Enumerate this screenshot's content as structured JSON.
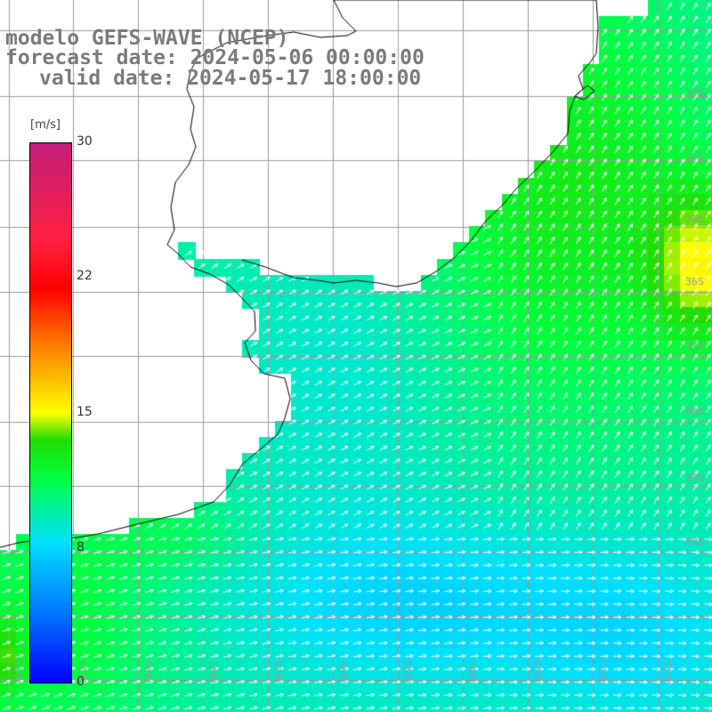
{
  "title": {
    "line1": "modelo GEFS-WAVE (NCEP)",
    "line2": "forecast date: 2024-05-06 00:00:00",
    "line3": "valid date: 2024-05-17 18:00:00"
  },
  "colorbar": {
    "unit": "[m/s]",
    "min": 0,
    "max": 30,
    "ticks": [
      {
        "label": "30",
        "value": 30
      },
      {
        "label": "22",
        "value": 22
      },
      {
        "label": "15",
        "value": 15
      },
      {
        "label": "8",
        "value": 8
      },
      {
        "label": "0",
        "value": 0
      }
    ]
  },
  "map": {
    "lon_labels": [
      "61W",
      "60W",
      "59W",
      "58W",
      "57W",
      "56W",
      "55W",
      "54W",
      "53W",
      "52W",
      "51W"
    ],
    "lat_labels": [
      "33S",
      "34S",
      "35S",
      "36S",
      "37S",
      "38S",
      "39S",
      "40S"
    ],
    "colors": {
      "grid": "#9a9a9a",
      "coast": "#000000",
      "arrow": "#ffffff",
      "axis_label": "#9a9a9a"
    }
  }
}
